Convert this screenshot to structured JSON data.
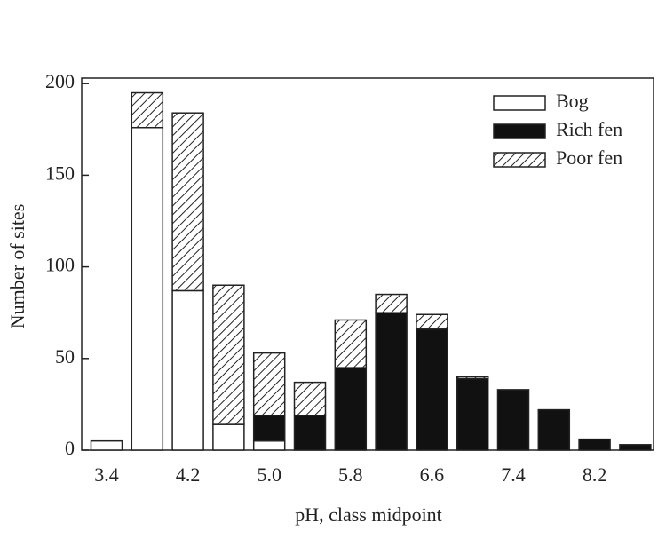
{
  "chart_data": {
    "type": "stacked-bar",
    "xlabel": "pH, class midpoint",
    "ylabel": "Number of sites",
    "categories": [
      "3.4",
      null,
      "4.2",
      null,
      "5.0",
      null,
      "5.8",
      null,
      "6.6",
      null,
      "7.4",
      null,
      "8.2",
      null
    ],
    "series": [
      {
        "name": "Bog",
        "color": "#ffffff",
        "pattern": "solid",
        "values": [
          5,
          176,
          87,
          14,
          5,
          0,
          0,
          0,
          0,
          0,
          0,
          0,
          0,
          0
        ]
      },
      {
        "name": "Rich fen",
        "color": "#111111",
        "pattern": "solid",
        "values": [
          0,
          0,
          0,
          0,
          14,
          19,
          45,
          75,
          66,
          39,
          33,
          22,
          6,
          3
        ]
      },
      {
        "name": "Poor fen",
        "color": "#111111",
        "pattern": "hatch",
        "values": [
          0,
          19,
          97,
          76,
          34,
          18,
          26,
          10,
          8,
          1,
          0,
          0,
          0,
          0
        ]
      }
    ],
    "ylim": [
      0,
      203
    ],
    "yticks": [
      0,
      50,
      100,
      150,
      200
    ],
    "legend": "top-right"
  }
}
